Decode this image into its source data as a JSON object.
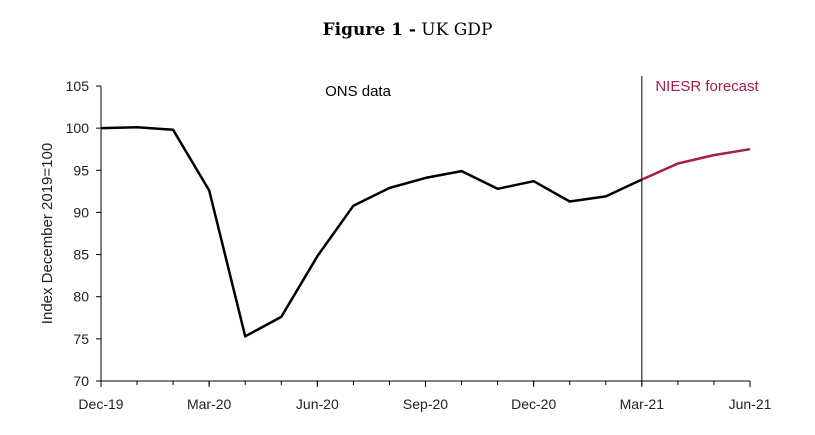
{
  "figure": {
    "label": "Figure 1 -",
    "title": "UK GDP"
  },
  "chart_data": {
    "type": "line",
    "title": "Figure 1 - UK GDP",
    "xlabel": "",
    "ylabel": "Index December 2019=100",
    "ylim": [
      70,
      105
    ],
    "y_ticks": [
      70,
      75,
      80,
      85,
      90,
      95,
      100,
      105
    ],
    "x_ticks": [
      {
        "index": 0,
        "label": "Dec-19"
      },
      {
        "index": 3,
        "label": "Mar-20"
      },
      {
        "index": 6,
        "label": "Jun-20"
      },
      {
        "index": 9,
        "label": "Sep-20"
      },
      {
        "index": 12,
        "label": "Dec-20"
      },
      {
        "index": 15,
        "label": "Mar-21"
      },
      {
        "index": 18,
        "label": "Jun-21"
      }
    ],
    "x_range": [
      0,
      18
    ],
    "series": [
      {
        "name": "ONS data",
        "color": "#000000",
        "points": [
          {
            "x": 0,
            "y": 100.0
          },
          {
            "x": 1,
            "y": 100.1
          },
          {
            "x": 2,
            "y": 99.8
          },
          {
            "x": 3,
            "y": 92.6
          },
          {
            "x": 4,
            "y": 75.3
          },
          {
            "x": 5,
            "y": 77.6
          },
          {
            "x": 6,
            "y": 84.8
          },
          {
            "x": 7,
            "y": 90.8
          },
          {
            "x": 8,
            "y": 92.9
          },
          {
            "x": 9,
            "y": 94.1
          },
          {
            "x": 10,
            "y": 94.9
          },
          {
            "x": 11,
            "y": 92.8
          },
          {
            "x": 12,
            "y": 93.7
          },
          {
            "x": 13,
            "y": 91.3
          },
          {
            "x": 14,
            "y": 91.9
          },
          {
            "x": 15,
            "y": 93.9
          }
        ]
      },
      {
        "name": "NIESR forecast",
        "color": "#a51e4a",
        "points": [
          {
            "x": 15,
            "y": 93.9
          },
          {
            "x": 16,
            "y": 95.8
          },
          {
            "x": 17,
            "y": 96.8
          },
          {
            "x": 18,
            "y": 97.5
          }
        ]
      }
    ],
    "divider_at": 15,
    "annotations": [
      {
        "text": "ONS data",
        "color": "#000000"
      },
      {
        "text": "NIESR forecast",
        "color": "#a51e4a"
      }
    ]
  }
}
